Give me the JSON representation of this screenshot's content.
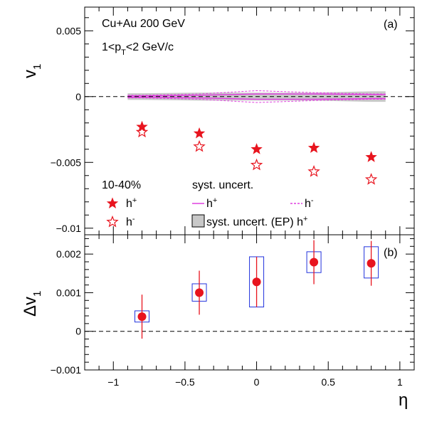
{
  "chart_data": [
    {
      "type": "scatter",
      "panel_label": "(a)",
      "annotations": [
        "Cu+Au 200 GeV",
        "1<p",
        "T",
        "<2 GeV/c"
      ],
      "ylabel": "v",
      "ylabel_sub": "1",
      "ylim": [
        -0.0105,
        0.0068
      ],
      "yticks": [
        0.005,
        0,
        -0.005,
        -0.01
      ],
      "ytick_labels": [
        "0.005",
        "0",
        "−0.005",
        "−0.01"
      ],
      "series": [
        {
          "name": "h",
          "charge": "+",
          "marker": "filled-star",
          "color": "#e8141e",
          "x": [
            -0.8,
            -0.4,
            0.0,
            0.4,
            0.8
          ],
          "y": [
            -0.0023,
            -0.0028,
            -0.004,
            -0.0039,
            -0.0046
          ]
        },
        {
          "name": "h",
          "charge": "-",
          "marker": "open-star",
          "color": "#e8141e",
          "x": [
            -0.8,
            -0.4,
            0.0,
            0.4,
            0.8
          ],
          "y": [
            -0.0027,
            -0.0038,
            -0.0052,
            -0.0057,
            -0.0063
          ]
        }
      ],
      "syst_bands": {
        "x": [
          -0.9,
          -0.8,
          -0.4,
          0.0,
          0.4,
          0.8,
          0.9
        ],
        "ep_half_width": [
          0.00025,
          0.00025,
          0.0003,
          0.0003,
          0.0003,
          0.0004,
          0.0004
        ],
        "h_plus_half_width": [
          5e-05,
          5e-05,
          0.0001,
          0.0002,
          0.0002,
          0.00015,
          0.00015
        ],
        "h_minus_half_width": [
          0.0001,
          0.0001,
          0.0002,
          0.00045,
          0.0003,
          0.0002,
          0.0002
        ],
        "colors": {
          "ep": "#c8c8c8",
          "h_plus": "#e040e0",
          "h_minus": "#e040e0"
        }
      },
      "legend": {
        "centrality": "10-40%",
        "syst_header": "syst. uncert.",
        "h_label": "h",
        "plus": "+",
        "minus": "-",
        "ep_label": "syst. uncert. (EP) h"
      }
    },
    {
      "type": "scatter",
      "panel_label": "(b)",
      "ylabel": "Δv",
      "ylabel_sub": "1",
      "xlabel": "η",
      "xlim": [
        -1.2,
        1.1
      ],
      "ylim": [
        -0.001,
        0.0025
      ],
      "yticks": [
        0.002,
        0.001,
        0,
        -0.001
      ],
      "ytick_labels": [
        "0.002",
        "0.001",
        "0",
        "−0.001"
      ],
      "xticks": [
        -1,
        -0.5,
        0,
        0.5,
        1
      ],
      "xtick_labels": [
        "−1",
        "−0.5",
        "0",
        "0.5",
        "1"
      ],
      "series": [
        {
          "name": "",
          "color": "#e8141e",
          "x": [
            -0.8,
            -0.4,
            0.0,
            0.4,
            0.8
          ],
          "y": [
            0.00038,
            0.001,
            0.00128,
            0.00179,
            0.00176
          ],
          "stat_err": [
            0.00057,
            0.00057,
            0.00065,
            0.00057,
            0.00058
          ],
          "sys_low": [
            0.00024,
            0.00078,
            0.00063,
            0.00152,
            0.00138
          ],
          "sys_high": [
            0.00053,
            0.00123,
            0.00193,
            0.00206,
            0.00219
          ]
        }
      ],
      "box_color": "#2233dd"
    }
  ]
}
